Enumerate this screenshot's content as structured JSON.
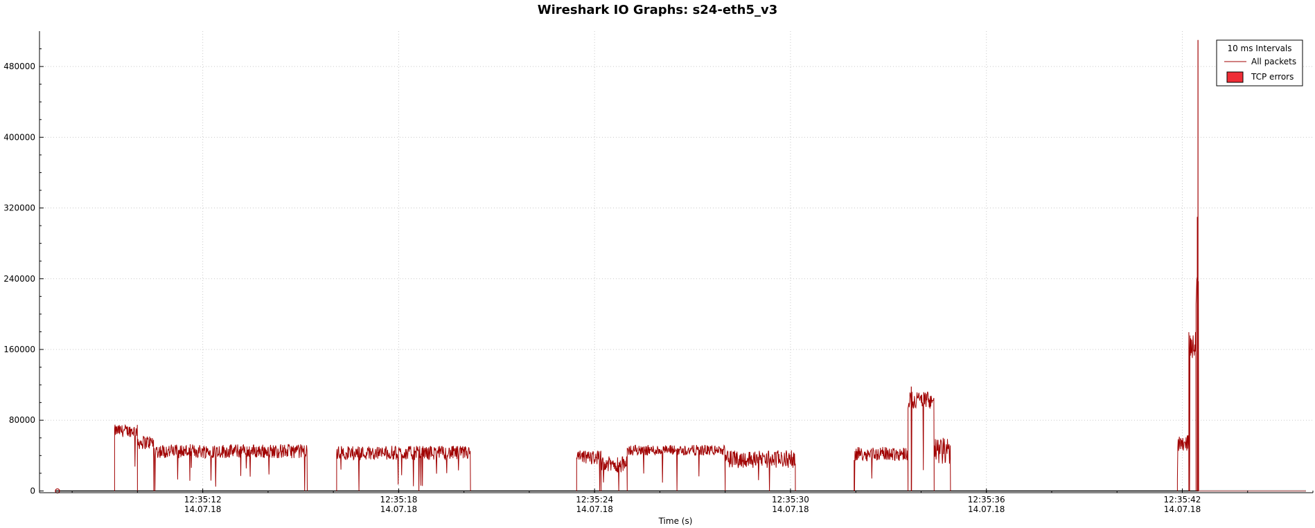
{
  "chart_data": {
    "type": "line",
    "title": "Wireshark IO Graphs: s24-eth5_v3",
    "xlabel": "Time (s)",
    "ylabel": "",
    "x_unit": "time",
    "xlim": [
      "12:35:07",
      "12:35:46"
    ],
    "ylim": [
      -2000,
      520000
    ],
    "grid": true,
    "legend_position": "top-right",
    "legend_title": "10 ms Intervals",
    "x_ticks": [
      {
        "time": "12:35:12",
        "date": "14.07.18"
      },
      {
        "time": "12:35:18",
        "date": "14.07.18"
      },
      {
        "time": "12:35:24",
        "date": "14.07.18"
      },
      {
        "time": "12:35:30",
        "date": "14.07.18"
      },
      {
        "time": "12:35:36",
        "date": "14.07.18"
      },
      {
        "time": "12:35:42",
        "date": "14.07.18"
      }
    ],
    "y_ticks": [
      "0",
      "80000",
      "160000",
      "240000",
      "320000",
      "400000",
      "480000"
    ],
    "series": [
      {
        "name": "All packets",
        "color": "#a00000",
        "segments": [
          {
            "start": "12:35:09.30",
            "end": "12:35:10.00",
            "level": 68000,
            "noise": 7000
          },
          {
            "start": "12:35:10.00",
            "end": "12:35:10.50",
            "level": 55000,
            "noise": 8000
          },
          {
            "start": "12:35:10.50",
            "end": "12:35:15.20",
            "level": 45000,
            "noise": 8000
          },
          {
            "start": "12:35:16.10",
            "end": "12:35:20.20",
            "level": 43000,
            "noise": 8000
          },
          {
            "start": "12:35:23.45",
            "end": "12:35:24.20",
            "level": 38000,
            "noise": 8000
          },
          {
            "start": "12:35:24.20",
            "end": "12:35:25.00",
            "level": 30000,
            "noise": 9000
          },
          {
            "start": "12:35:25.00",
            "end": "12:35:28.00",
            "level": 46000,
            "noise": 6000
          },
          {
            "start": "12:35:28.00",
            "end": "12:35:30.15",
            "level": 36000,
            "noise": 10000
          },
          {
            "start": "12:35:31.95",
            "end": "12:35:33.60",
            "level": 42000,
            "noise": 8000
          },
          {
            "start": "12:35:33.60",
            "end": "12:35:34.40",
            "level": 103000,
            "noise": 10000
          },
          {
            "start": "12:35:34.40",
            "end": "12:35:34.90",
            "level": 45000,
            "noise": 15000
          },
          {
            "start": "12:35:41.85",
            "end": "12:35:42.20",
            "level": 55000,
            "noise": 10000
          },
          {
            "start": "12:35:42.20",
            "end": "12:35:42.42",
            "level": 165000,
            "noise": 15000
          },
          {
            "start": "12:35:42.42",
            "end": "12:35:42.50",
            "level": 230000,
            "noise": 20000
          }
        ],
        "spikes": [
          {
            "time": "12:35:42.48",
            "value": 510000
          },
          {
            "time": "12:35:42.46",
            "value": 310000
          },
          {
            "time": "12:35:33.70",
            "value": 118000
          }
        ]
      },
      {
        "name": "TCP errors",
        "color": "#ee2d36",
        "values_constant": 0
      }
    ],
    "marker": {
      "time": "12:35:07.55",
      "value": 0
    }
  }
}
